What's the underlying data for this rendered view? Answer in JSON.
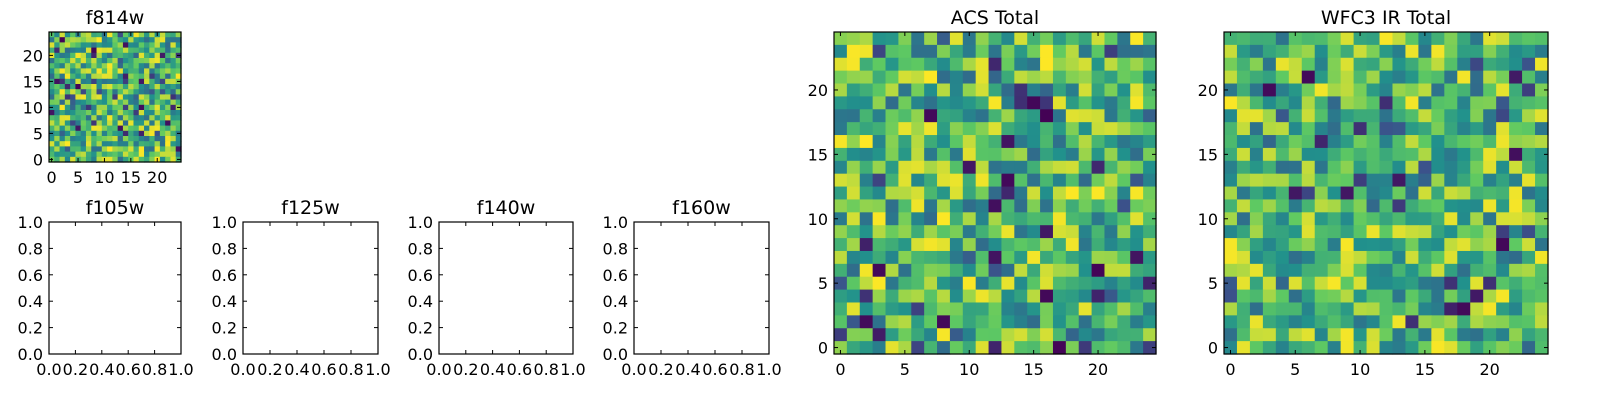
{
  "colors": {
    "viridis_stops": [
      "#440154",
      "#3b528b",
      "#21918c",
      "#5ec962",
      "#fde725"
    ],
    "frame": "#000000",
    "background": "#ffffff"
  },
  "chart_data": [
    {
      "id": "f814w",
      "type": "heatmap",
      "title": "f814w",
      "grid_size": 25,
      "xlim": [
        -0.5,
        24.5
      ],
      "ylim": [
        -0.5,
        24.5
      ],
      "xticks": [
        "0",
        "5",
        "10",
        "15",
        "20"
      ],
      "yticks": [
        "0",
        "5",
        "10",
        "15",
        "20"
      ],
      "values_description_free": true,
      "seed": 814,
      "grid": false
    },
    {
      "id": "f105w",
      "type": "heatmap",
      "title": "f105w",
      "empty": true,
      "xlim": [
        0,
        1
      ],
      "ylim": [
        0,
        1
      ],
      "xticks": [
        "0.0",
        "0.2",
        "0.4",
        "0.6",
        "0.8",
        "1.0"
      ],
      "yticks": [
        "0.0",
        "0.2",
        "0.4",
        "0.6",
        "0.8",
        "1.0"
      ]
    },
    {
      "id": "f125w",
      "type": "heatmap",
      "title": "f125w",
      "empty": true,
      "xlim": [
        0,
        1
      ],
      "ylim": [
        0,
        1
      ],
      "xticks": [
        "0.0",
        "0.2",
        "0.4",
        "0.6",
        "0.8",
        "1.0"
      ],
      "yticks": [
        "0.0",
        "0.2",
        "0.4",
        "0.6",
        "0.8",
        "1.0"
      ]
    },
    {
      "id": "f140w",
      "type": "heatmap",
      "title": "f140w",
      "empty": true,
      "xlim": [
        0,
        1
      ],
      "ylim": [
        0,
        1
      ],
      "xticks": [
        "0.0",
        "0.2",
        "0.4",
        "0.6",
        "0.8",
        "1.0"
      ],
      "yticks": [
        "0.0",
        "0.2",
        "0.4",
        "0.6",
        "0.8",
        "1.0"
      ]
    },
    {
      "id": "f160w",
      "type": "heatmap",
      "title": "f160w",
      "empty": true,
      "xlim": [
        0,
        1
      ],
      "ylim": [
        0,
        1
      ],
      "xticks": [
        "0.0",
        "0.2",
        "0.4",
        "0.6",
        "0.8",
        "1.0"
      ],
      "yticks": [
        "0.0",
        "0.2",
        "0.4",
        "0.6",
        "0.8",
        "1.0"
      ]
    },
    {
      "id": "acs-total",
      "type": "heatmap",
      "title": "ACS Total",
      "grid_size": 25,
      "xlim": [
        -0.5,
        24.5
      ],
      "ylim": [
        -0.5,
        24.5
      ],
      "xticks": [
        "0",
        "5",
        "10",
        "15",
        "20"
      ],
      "yticks": [
        "0",
        "5",
        "10",
        "15",
        "20"
      ],
      "seed": 1234,
      "grid": false
    },
    {
      "id": "wfc3-ir-total",
      "type": "heatmap",
      "title": "WFC3 IR Total",
      "grid_size": 25,
      "xlim": [
        -0.5,
        24.5
      ],
      "ylim": [
        -0.5,
        24.5
      ],
      "xticks": [
        "0",
        "5",
        "10",
        "15",
        "20"
      ],
      "yticks": [
        "0",
        "5",
        "10",
        "15",
        "20"
      ],
      "seed": 3160,
      "grid": false
    }
  ]
}
